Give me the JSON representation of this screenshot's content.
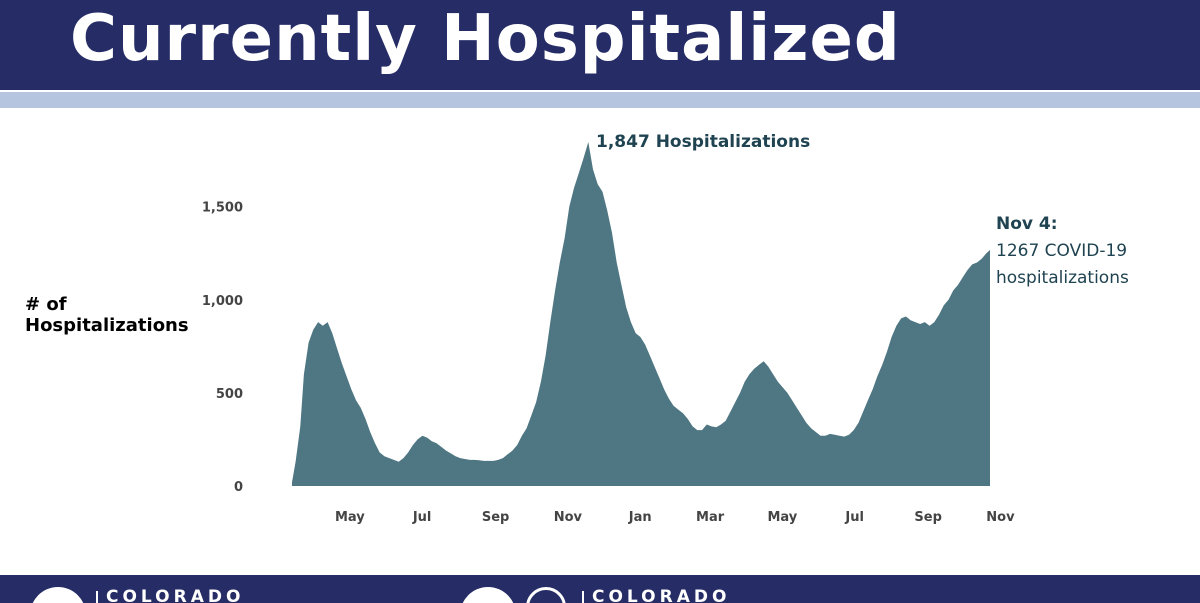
{
  "header": {
    "title": "Currently Hospitalized"
  },
  "colors": {
    "header_bg": "#252c66",
    "accent_bar": "#b5c4df",
    "area_fill": "#4f7783",
    "annotation": "#1f4350"
  },
  "chart_data": {
    "type": "area",
    "title": "",
    "ylabel": "# of\nHospitalizations",
    "xlabel": "",
    "ylim": [
      0,
      1847
    ],
    "yticks": [
      0,
      500,
      1000,
      1500
    ],
    "ytick_labels": [
      "0",
      "500",
      "1,000",
      "1,500"
    ],
    "x_tick_labels": [
      "May",
      "Jul",
      "Sep",
      "Nov",
      "Jan",
      "Mar",
      "May",
      "Jul",
      "Sep",
      "Nov"
    ],
    "x_start": "2020-03-25",
    "x_end": "2021-11-04",
    "grid": false,
    "legend": "none",
    "points": [
      [
        "2020-03-25",
        20
      ],
      [
        "2020-03-28",
        130
      ],
      [
        "2020-04-01",
        320
      ],
      [
        "2020-04-04",
        600
      ],
      [
        "2020-04-08",
        770
      ],
      [
        "2020-04-12",
        840
      ],
      [
        "2020-04-16",
        880
      ],
      [
        "2020-04-20",
        860
      ],
      [
        "2020-04-24",
        880
      ],
      [
        "2020-04-28",
        820
      ],
      [
        "2020-05-02",
        740
      ],
      [
        "2020-05-06",
        660
      ],
      [
        "2020-05-10",
        590
      ],
      [
        "2020-05-14",
        520
      ],
      [
        "2020-05-18",
        460
      ],
      [
        "2020-05-22",
        420
      ],
      [
        "2020-05-26",
        360
      ],
      [
        "2020-05-30",
        290
      ],
      [
        "2020-06-03",
        230
      ],
      [
        "2020-06-07",
        180
      ],
      [
        "2020-06-11",
        160
      ],
      [
        "2020-06-15",
        150
      ],
      [
        "2020-06-19",
        140
      ],
      [
        "2020-06-23",
        130
      ],
      [
        "2020-06-27",
        150
      ],
      [
        "2020-07-01",
        180
      ],
      [
        "2020-07-05",
        220
      ],
      [
        "2020-07-09",
        250
      ],
      [
        "2020-07-13",
        270
      ],
      [
        "2020-07-17",
        260
      ],
      [
        "2020-07-21",
        240
      ],
      [
        "2020-07-25",
        230
      ],
      [
        "2020-07-29",
        210
      ],
      [
        "2020-08-02",
        190
      ],
      [
        "2020-08-06",
        175
      ],
      [
        "2020-08-10",
        160
      ],
      [
        "2020-08-14",
        150
      ],
      [
        "2020-08-18",
        145
      ],
      [
        "2020-08-22",
        140
      ],
      [
        "2020-08-26",
        140
      ],
      [
        "2020-08-30",
        138
      ],
      [
        "2020-09-03",
        135
      ],
      [
        "2020-09-07",
        135
      ],
      [
        "2020-09-11",
        135
      ],
      [
        "2020-09-15",
        140
      ],
      [
        "2020-09-19",
        150
      ],
      [
        "2020-09-23",
        170
      ],
      [
        "2020-09-27",
        190
      ],
      [
        "2020-10-01",
        220
      ],
      [
        "2020-10-05",
        270
      ],
      [
        "2020-10-09",
        310
      ],
      [
        "2020-10-13",
        380
      ],
      [
        "2020-10-17",
        450
      ],
      [
        "2020-10-21",
        560
      ],
      [
        "2020-10-25",
        700
      ],
      [
        "2020-10-29",
        880
      ],
      [
        "2020-11-02",
        1050
      ],
      [
        "2020-11-06",
        1200
      ],
      [
        "2020-11-10",
        1330
      ],
      [
        "2020-11-14",
        1500
      ],
      [
        "2020-11-18",
        1600
      ],
      [
        "2020-11-22",
        1680
      ],
      [
        "2020-11-26",
        1760
      ],
      [
        "2020-11-30",
        1847
      ],
      [
        "2020-12-04",
        1700
      ],
      [
        "2020-12-08",
        1620
      ],
      [
        "2020-12-12",
        1580
      ],
      [
        "2020-12-16",
        1480
      ],
      [
        "2020-12-20",
        1360
      ],
      [
        "2020-12-24",
        1200
      ],
      [
        "2020-12-28",
        1080
      ],
      [
        "2021-01-01",
        960
      ],
      [
        "2021-01-05",
        880
      ],
      [
        "2021-01-09",
        820
      ],
      [
        "2021-01-13",
        800
      ],
      [
        "2021-01-17",
        760
      ],
      [
        "2021-01-21",
        700
      ],
      [
        "2021-01-25",
        640
      ],
      [
        "2021-01-29",
        580
      ],
      [
        "2021-02-02",
        520
      ],
      [
        "2021-02-06",
        470
      ],
      [
        "2021-02-10",
        430
      ],
      [
        "2021-02-14",
        410
      ],
      [
        "2021-02-18",
        390
      ],
      [
        "2021-02-22",
        360
      ],
      [
        "2021-02-26",
        320
      ],
      [
        "2021-03-02",
        300
      ],
      [
        "2021-03-06",
        300
      ],
      [
        "2021-03-10",
        330
      ],
      [
        "2021-03-14",
        320
      ],
      [
        "2021-03-18",
        315
      ],
      [
        "2021-03-22",
        330
      ],
      [
        "2021-03-26",
        350
      ],
      [
        "2021-03-30",
        400
      ],
      [
        "2021-04-03",
        450
      ],
      [
        "2021-04-07",
        500
      ],
      [
        "2021-04-11",
        560
      ],
      [
        "2021-04-15",
        600
      ],
      [
        "2021-04-19",
        630
      ],
      [
        "2021-04-23",
        650
      ],
      [
        "2021-04-27",
        670
      ],
      [
        "2021-05-01",
        640
      ],
      [
        "2021-05-05",
        600
      ],
      [
        "2021-05-09",
        560
      ],
      [
        "2021-05-13",
        530
      ],
      [
        "2021-05-17",
        500
      ],
      [
        "2021-05-21",
        460
      ],
      [
        "2021-05-25",
        420
      ],
      [
        "2021-05-29",
        380
      ],
      [
        "2021-06-02",
        340
      ],
      [
        "2021-06-06",
        310
      ],
      [
        "2021-06-10",
        290
      ],
      [
        "2021-06-14",
        270
      ],
      [
        "2021-06-18",
        270
      ],
      [
        "2021-06-22",
        280
      ],
      [
        "2021-06-26",
        275
      ],
      [
        "2021-06-30",
        270
      ],
      [
        "2021-07-04",
        265
      ],
      [
        "2021-07-08",
        275
      ],
      [
        "2021-07-12",
        300
      ],
      [
        "2021-07-16",
        340
      ],
      [
        "2021-07-20",
        400
      ],
      [
        "2021-07-24",
        460
      ],
      [
        "2021-07-28",
        520
      ],
      [
        "2021-08-01",
        590
      ],
      [
        "2021-08-05",
        650
      ],
      [
        "2021-08-09",
        720
      ],
      [
        "2021-08-13",
        800
      ],
      [
        "2021-08-17",
        860
      ],
      [
        "2021-08-21",
        900
      ],
      [
        "2021-08-25",
        910
      ],
      [
        "2021-08-29",
        890
      ],
      [
        "2021-09-02",
        880
      ],
      [
        "2021-09-06",
        870
      ],
      [
        "2021-09-10",
        880
      ],
      [
        "2021-09-14",
        860
      ],
      [
        "2021-09-18",
        880
      ],
      [
        "2021-09-22",
        920
      ],
      [
        "2021-09-26",
        970
      ],
      [
        "2021-09-30",
        1000
      ],
      [
        "2021-10-04",
        1050
      ],
      [
        "2021-10-08",
        1080
      ],
      [
        "2021-10-12",
        1120
      ],
      [
        "2021-10-16",
        1160
      ],
      [
        "2021-10-20",
        1190
      ],
      [
        "2021-10-24",
        1200
      ],
      [
        "2021-10-28",
        1220
      ],
      [
        "2021-11-01",
        1250
      ],
      [
        "2021-11-04",
        1267
      ]
    ],
    "annotations": {
      "peak": {
        "date": "2020-11-30",
        "value": 1847,
        "label": "1,847 Hospitalizations"
      },
      "latest": {
        "date": "2021-11-04",
        "value": 1267,
        "line1": "Nov 4:",
        "line2": "1267 COVID-19",
        "line3": "hospitalizations"
      }
    }
  },
  "footer": {
    "logos": [
      {
        "text": "COLORADO"
      },
      {
        "text": "COLORADO"
      }
    ]
  }
}
